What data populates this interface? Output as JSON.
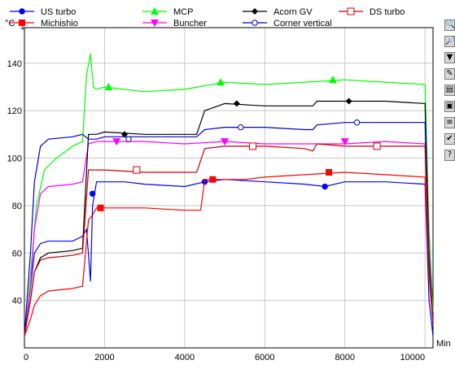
{
  "chart_data": {
    "type": "line",
    "ylabel": "°C",
    "xlabel": "Min",
    "xlim": [
      0,
      10200
    ],
    "ylim": [
      20,
      155
    ],
    "xticks": [
      0,
      2000,
      4000,
      6000,
      8000,
      10000
    ],
    "yticks": [
      40,
      60,
      80,
      100,
      120,
      140
    ],
    "grid": true,
    "legend_position": "top",
    "series": [
      {
        "name": "US turbo",
        "color": "#0000ff",
        "marker": "circle-filled",
        "x": [
          0,
          150,
          250,
          400,
          600,
          1200,
          1450,
          1550,
          1650,
          1700,
          1800,
          2000,
          2500,
          3000,
          4000,
          4500,
          5000,
          6000,
          7000,
          7500,
          8000,
          9000,
          10000,
          10100,
          10200
        ],
        "y": [
          25,
          45,
          60,
          64,
          65,
          65,
          67,
          70,
          48,
          80,
          90,
          90,
          90,
          89,
          88,
          90,
          91,
          90,
          89,
          88,
          90,
          90,
          89,
          40,
          25
        ],
        "marker_x": [
          1700,
          4500,
          7500
        ],
        "marker_y": [
          85,
          90,
          88
        ]
      },
      {
        "name": "Michishio",
        "color": "#ff0000",
        "marker": "square-filled",
        "x": [
          0,
          150,
          250,
          400,
          600,
          1200,
          1450,
          1600,
          1700,
          1800,
          2000,
          2500,
          3000,
          4000,
          4400,
          4500,
          5000,
          5500,
          6000,
          7000,
          8000,
          9000,
          10000,
          10100,
          10200
        ],
        "y": [
          25,
          32,
          38,
          42,
          44,
          45,
          46,
          74,
          76,
          79,
          79,
          79,
          79,
          78,
          78,
          91,
          91,
          91,
          92,
          93,
          94,
          93,
          92,
          50,
          30
        ],
        "marker_x": [
          1900,
          4700,
          7600
        ],
        "marker_y": [
          79,
          91,
          94
        ]
      },
      {
        "name": "MCP",
        "color": "#00ff00",
        "marker": "triangle-up",
        "x": [
          0,
          100,
          200,
          300,
          500,
          800,
          1200,
          1450,
          1550,
          1650,
          1720,
          1800,
          2000,
          3000,
          4000,
          5000,
          6000,
          7000,
          8000,
          9000,
          10000,
          10100,
          10200
        ],
        "y": [
          25,
          40,
          60,
          80,
          95,
          100,
          105,
          107,
          135,
          144,
          130,
          129,
          130,
          128,
          129,
          132,
          131,
          132,
          133,
          132,
          131,
          70,
          35
        ],
        "marker_x": [
          2100,
          4900,
          7700
        ],
        "marker_y": [
          130,
          132,
          133
        ]
      },
      {
        "name": "Buncher",
        "color": "#ff00ff",
        "marker": "triangle-down",
        "x": [
          0,
          150,
          250,
          400,
          600,
          1200,
          1450,
          1600,
          1800,
          2000,
          3000,
          4000,
          5000,
          6000,
          7000,
          8000,
          9000,
          10000,
          10100,
          10200
        ],
        "y": [
          25,
          45,
          70,
          85,
          88,
          89,
          90,
          106,
          107,
          107,
          107,
          106,
          107,
          106,
          106,
          106,
          107,
          106,
          55,
          30
        ],
        "marker_x": [
          2300,
          5000,
          8000
        ],
        "marker_y": [
          107,
          107,
          107
        ]
      },
      {
        "name": "Acorn GV",
        "color": "#000000",
        "marker": "diamond-filled",
        "x": [
          0,
          150,
          250,
          400,
          600,
          1200,
          1450,
          1600,
          1800,
          2000,
          3000,
          4000,
          4300,
          4500,
          5000,
          6000,
          7000,
          7200,
          7300,
          8000,
          9000,
          10000,
          10100,
          10200
        ],
        "y": [
          25,
          40,
          52,
          58,
          60,
          61,
          62,
          110,
          110,
          111,
          110,
          110,
          110,
          120,
          123,
          122,
          122,
          122,
          124,
          124,
          124,
          123,
          60,
          30
        ],
        "marker_x": [
          2500,
          5300,
          8100
        ],
        "marker_y": [
          110,
          123,
          124
        ]
      },
      {
        "name": "Corner vertical",
        "color": "#0000cc",
        "marker": "circle-open",
        "x": [
          0,
          150,
          250,
          400,
          600,
          1200,
          1450,
          1600,
          1800,
          2000,
          3000,
          4000,
          4300,
          4500,
          5000,
          6000,
          7000,
          7200,
          7300,
          8000,
          9000,
          10000,
          10100,
          10200
        ],
        "y": [
          25,
          60,
          90,
          105,
          108,
          109,
          110,
          108,
          108,
          109,
          109,
          109,
          109,
          112,
          113,
          113,
          112,
          112,
          114,
          115,
          115,
          115,
          60,
          30
        ],
        "marker_x": [
          2600,
          5400,
          8300
        ],
        "marker_y": [
          108,
          113,
          115
        ]
      },
      {
        "name": "DS turbo",
        "color": "#cc0000",
        "marker": "square-open",
        "x": [
          0,
          150,
          250,
          400,
          600,
          1200,
          1450,
          1600,
          1800,
          2000,
          3000,
          4000,
          4300,
          4500,
          5000,
          6000,
          7000,
          7200,
          7300,
          8000,
          9000,
          10000,
          10100,
          10200
        ],
        "y": [
          25,
          40,
          52,
          57,
          58,
          59,
          60,
          95,
          95,
          95,
          94,
          94,
          94,
          104,
          105,
          105,
          104,
          103,
          106,
          105,
          105,
          105,
          55,
          30
        ],
        "marker_x": [
          2800,
          5700,
          8800
        ],
        "marker_y": [
          95,
          105,
          105
        ]
      }
    ]
  },
  "toolbar": {
    "buttons": [
      {
        "icon": "zoom-in-icon",
        "glyph": "🔍"
      },
      {
        "icon": "zoom-out-icon",
        "glyph": "🔎"
      },
      {
        "icon": "dropdown-icon",
        "glyph": "▼"
      },
      {
        "icon": "highlight-icon",
        "glyph": "✎"
      },
      {
        "icon": "copy-icon",
        "glyph": "▤"
      },
      {
        "icon": "save-icon",
        "glyph": "▣"
      },
      {
        "icon": "legend-icon",
        "glyph": "≡"
      },
      {
        "icon": "check-icon",
        "glyph": "✔"
      },
      {
        "icon": "help-icon",
        "glyph": "?"
      }
    ]
  }
}
